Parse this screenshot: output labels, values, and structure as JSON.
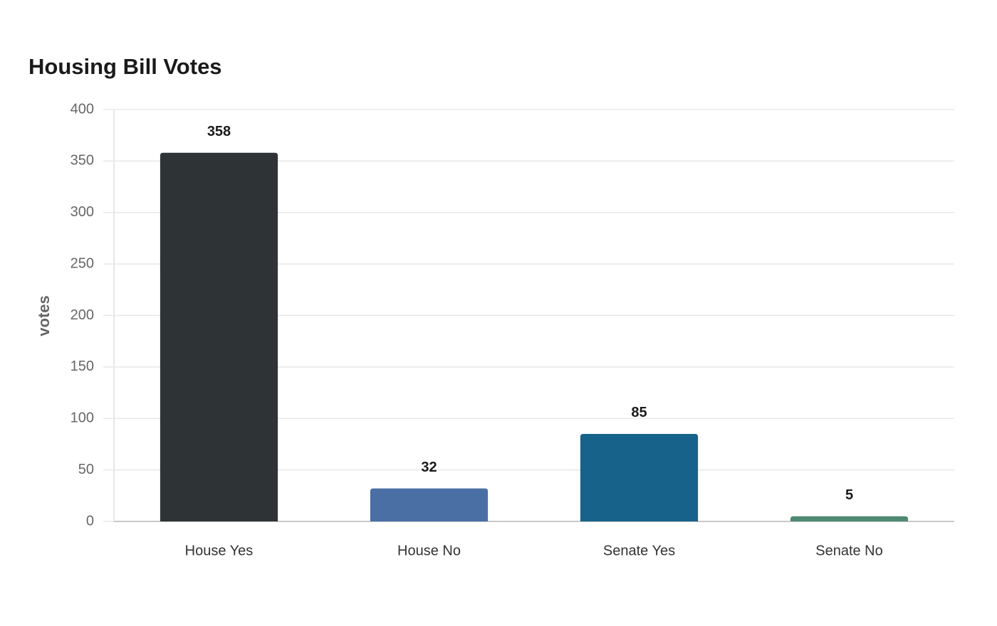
{
  "chart_data": {
    "type": "bar",
    "title": "Housing Bill Votes",
    "y_label": "votes",
    "categories": [
      "House Yes",
      "House No",
      "Senate Yes",
      "Senate No"
    ],
    "values": [
      358,
      32,
      85,
      5
    ],
    "colors": [
      "#2e3436",
      "#4a6fa5",
      "#17628a",
      "#4e8a72"
    ],
    "ylim": [
      0,
      400
    ],
    "yticks": [
      0,
      50,
      100,
      150,
      200,
      250,
      300,
      350,
      400
    ],
    "grid": true
  }
}
